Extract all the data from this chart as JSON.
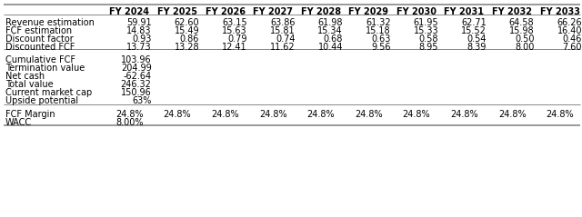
{
  "years": [
    "FY 2024",
    "FY 2025",
    "FY 2026",
    "FY 2027",
    "FY 2028",
    "FY 2029",
    "FY 2030",
    "FY 2031",
    "FY 2032",
    "FY 2033"
  ],
  "revenue_estimation": [
    "59.91",
    "62.60",
    "63.15",
    "63.86",
    "61.98",
    "61.32",
    "61.95",
    "62.71",
    "64.58",
    "66.26"
  ],
  "fcf_estimation": [
    "14.83",
    "15.49",
    "15.63",
    "15.81",
    "15.34",
    "15.18",
    "15.33",
    "15.52",
    "15.98",
    "16.40"
  ],
  "discount_factor": [
    "0.93",
    "0.86",
    "0.79",
    "0.74",
    "0.68",
    "0.63",
    "0.58",
    "0.54",
    "0.50",
    "0.46"
  ],
  "discounted_fcf": [
    "13.73",
    "13.28",
    "12.41",
    "11.62",
    "10.44",
    "9.56",
    "8.95",
    "8.39",
    "8.00",
    "7.60"
  ],
  "fcf_margin": [
    "24.8%",
    "24.8%",
    "24.8%",
    "24.8%",
    "24.8%",
    "24.8%",
    "24.8%",
    "24.8%",
    "24.8%",
    "24.8%"
  ],
  "wacc_vals": [
    "8.00%",
    "",
    "",
    "",
    "",
    "",
    "",
    "",
    "",
    ""
  ],
  "cumulative_fcf": "103.96",
  "termination_value": "204.99",
  "net_cash": "-62.64",
  "total_value": "246.32",
  "current_market_cap": "150.96",
  "upside_potential": "63%",
  "wacc": "8.00%",
  "bg_color": "#ffffff",
  "font_size": 7.0,
  "header_font_size": 7.0
}
